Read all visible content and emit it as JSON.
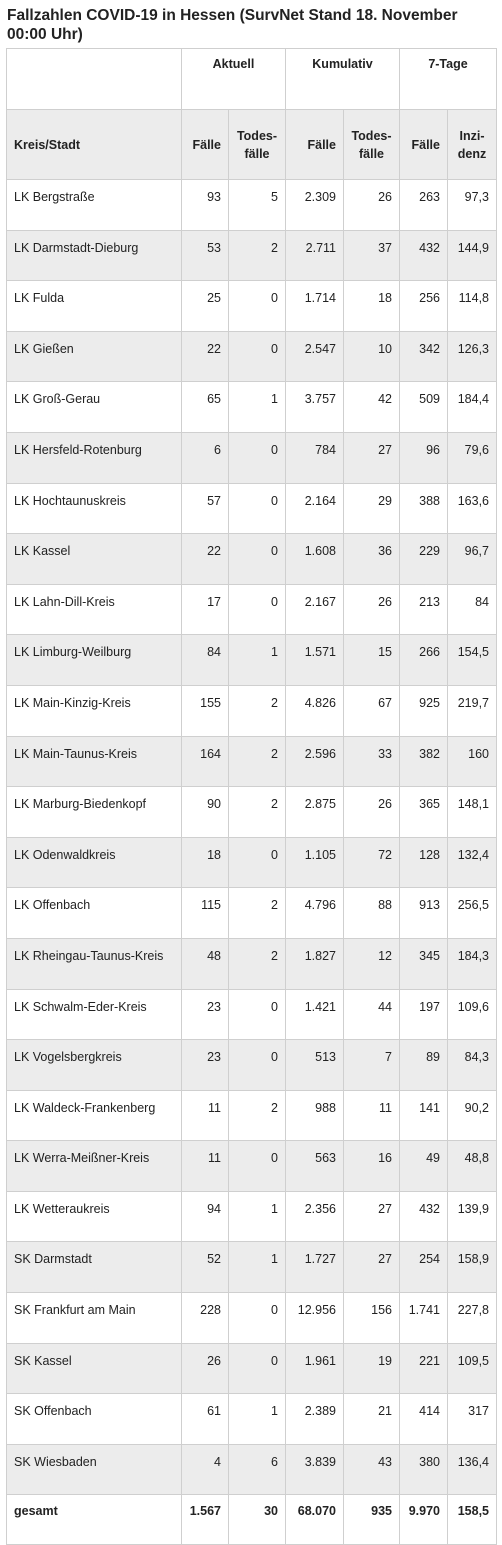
{
  "title": "Fallzahlen COVID-19 in Hessen (SurvNet Stand 18. November 00:00 Uhr)",
  "groups": [
    "Aktuell",
    "Kumulativ",
    "7-Tage"
  ],
  "headers": {
    "kreis": "Kreis/Stadt",
    "faelle": "Fälle",
    "todes_1": "Todes-",
    "todes_2": "fälle",
    "inz_1": "Inzi-",
    "inz_2": "denz"
  },
  "rows": [
    {
      "name": "LK Bergstraße",
      "a_faelle": "93",
      "a_tote": "5",
      "k_faelle": "2.309",
      "k_tote": "26",
      "t_faelle": "263",
      "t_inz": "97,3"
    },
    {
      "name": "LK Darmstadt-Dieburg",
      "a_faelle": "53",
      "a_tote": "2",
      "k_faelle": "2.711",
      "k_tote": "37",
      "t_faelle": "432",
      "t_inz": "144,9"
    },
    {
      "name": "LK Fulda",
      "a_faelle": "25",
      "a_tote": "0",
      "k_faelle": "1.714",
      "k_tote": "18",
      "t_faelle": "256",
      "t_inz": "114,8"
    },
    {
      "name": "LK Gießen",
      "a_faelle": "22",
      "a_tote": "0",
      "k_faelle": "2.547",
      "k_tote": "10",
      "t_faelle": "342",
      "t_inz": "126,3"
    },
    {
      "name": "LK Groß-Gerau",
      "a_faelle": "65",
      "a_tote": "1",
      "k_faelle": "3.757",
      "k_tote": "42",
      "t_faelle": "509",
      "t_inz": "184,4"
    },
    {
      "name": "LK Hersfeld-Rotenburg",
      "a_faelle": "6",
      "a_tote": "0",
      "k_faelle": "784",
      "k_tote": "27",
      "t_faelle": "96",
      "t_inz": "79,6"
    },
    {
      "name": "LK Hochtaunuskreis",
      "a_faelle": "57",
      "a_tote": "0",
      "k_faelle": "2.164",
      "k_tote": "29",
      "t_faelle": "388",
      "t_inz": "163,6"
    },
    {
      "name": "LK Kassel",
      "a_faelle": "22",
      "a_tote": "0",
      "k_faelle": "1.608",
      "k_tote": "36",
      "t_faelle": "229",
      "t_inz": "96,7"
    },
    {
      "name": "LK Lahn-Dill-Kreis",
      "a_faelle": "17",
      "a_tote": "0",
      "k_faelle": "2.167",
      "k_tote": "26",
      "t_faelle": "213",
      "t_inz": "84"
    },
    {
      "name": "LK Limburg-Weilburg",
      "a_faelle": "84",
      "a_tote": "1",
      "k_faelle": "1.571",
      "k_tote": "15",
      "t_faelle": "266",
      "t_inz": "154,5"
    },
    {
      "name": "LK Main-Kinzig-Kreis",
      "a_faelle": "155",
      "a_tote": "2",
      "k_faelle": "4.826",
      "k_tote": "67",
      "t_faelle": "925",
      "t_inz": "219,7"
    },
    {
      "name": "LK Main-Taunus-Kreis",
      "a_faelle": "164",
      "a_tote": "2",
      "k_faelle": "2.596",
      "k_tote": "33",
      "t_faelle": "382",
      "t_inz": "160"
    },
    {
      "name": "LK Marburg-Biedenkopf",
      "a_faelle": "90",
      "a_tote": "2",
      "k_faelle": "2.875",
      "k_tote": "26",
      "t_faelle": "365",
      "t_inz": "148,1"
    },
    {
      "name": "LK Odenwaldkreis",
      "a_faelle": "18",
      "a_tote": "0",
      "k_faelle": "1.105",
      "k_tote": "72",
      "t_faelle": "128",
      "t_inz": "132,4"
    },
    {
      "name": "LK Offenbach",
      "a_faelle": "115",
      "a_tote": "2",
      "k_faelle": "4.796",
      "k_tote": "88",
      "t_faelle": "913",
      "t_inz": "256,5"
    },
    {
      "name": "LK Rheingau-Taunus-Kreis",
      "a_faelle": "48",
      "a_tote": "2",
      "k_faelle": "1.827",
      "k_tote": "12",
      "t_faelle": "345",
      "t_inz": "184,3"
    },
    {
      "name": "LK Schwalm-Eder-Kreis",
      "a_faelle": "23",
      "a_tote": "0",
      "k_faelle": "1.421",
      "k_tote": "44",
      "t_faelle": "197",
      "t_inz": "109,6"
    },
    {
      "name": "LK Vogelsbergkreis",
      "a_faelle": "23",
      "a_tote": "0",
      "k_faelle": "513",
      "k_tote": "7",
      "t_faelle": "89",
      "t_inz": "84,3"
    },
    {
      "name": "LK Waldeck-Frankenberg",
      "a_faelle": "11",
      "a_tote": "2",
      "k_faelle": "988",
      "k_tote": "11",
      "t_faelle": "141",
      "t_inz": "90,2"
    },
    {
      "name": "LK Werra-Meißner-Kreis",
      "a_faelle": "11",
      "a_tote": "0",
      "k_faelle": "563",
      "k_tote": "16",
      "t_faelle": "49",
      "t_inz": "48,8"
    },
    {
      "name": "LK Wetteraukreis",
      "a_faelle": "94",
      "a_tote": "1",
      "k_faelle": "2.356",
      "k_tote": "27",
      "t_faelle": "432",
      "t_inz": "139,9"
    },
    {
      "name": "SK Darmstadt",
      "a_faelle": "52",
      "a_tote": "1",
      "k_faelle": "1.727",
      "k_tote": "27",
      "t_faelle": "254",
      "t_inz": "158,9"
    },
    {
      "name": "SK Frankfurt am Main",
      "a_faelle": "228",
      "a_tote": "0",
      "k_faelle": "12.956",
      "k_tote": "156",
      "t_faelle": "1.741",
      "t_inz": "227,8"
    },
    {
      "name": "SK Kassel",
      "a_faelle": "26",
      "a_tote": "0",
      "k_faelle": "1.961",
      "k_tote": "19",
      "t_faelle": "221",
      "t_inz": "109,5"
    },
    {
      "name": "SK Offenbach",
      "a_faelle": "61",
      "a_tote": "1",
      "k_faelle": "2.389",
      "k_tote": "21",
      "t_faelle": "414",
      "t_inz": "317"
    },
    {
      "name": "SK Wiesbaden",
      "a_faelle": "4",
      "a_tote": "6",
      "k_faelle": "3.839",
      "k_tote": "43",
      "t_faelle": "380",
      "t_inz": "136,4"
    }
  ],
  "total": {
    "name": "gesamt",
    "a_faelle": "1.567",
    "a_tote": "30",
    "k_faelle": "68.070",
    "k_tote": "935",
    "t_faelle": "9.970",
    "t_inz": "158,5"
  }
}
